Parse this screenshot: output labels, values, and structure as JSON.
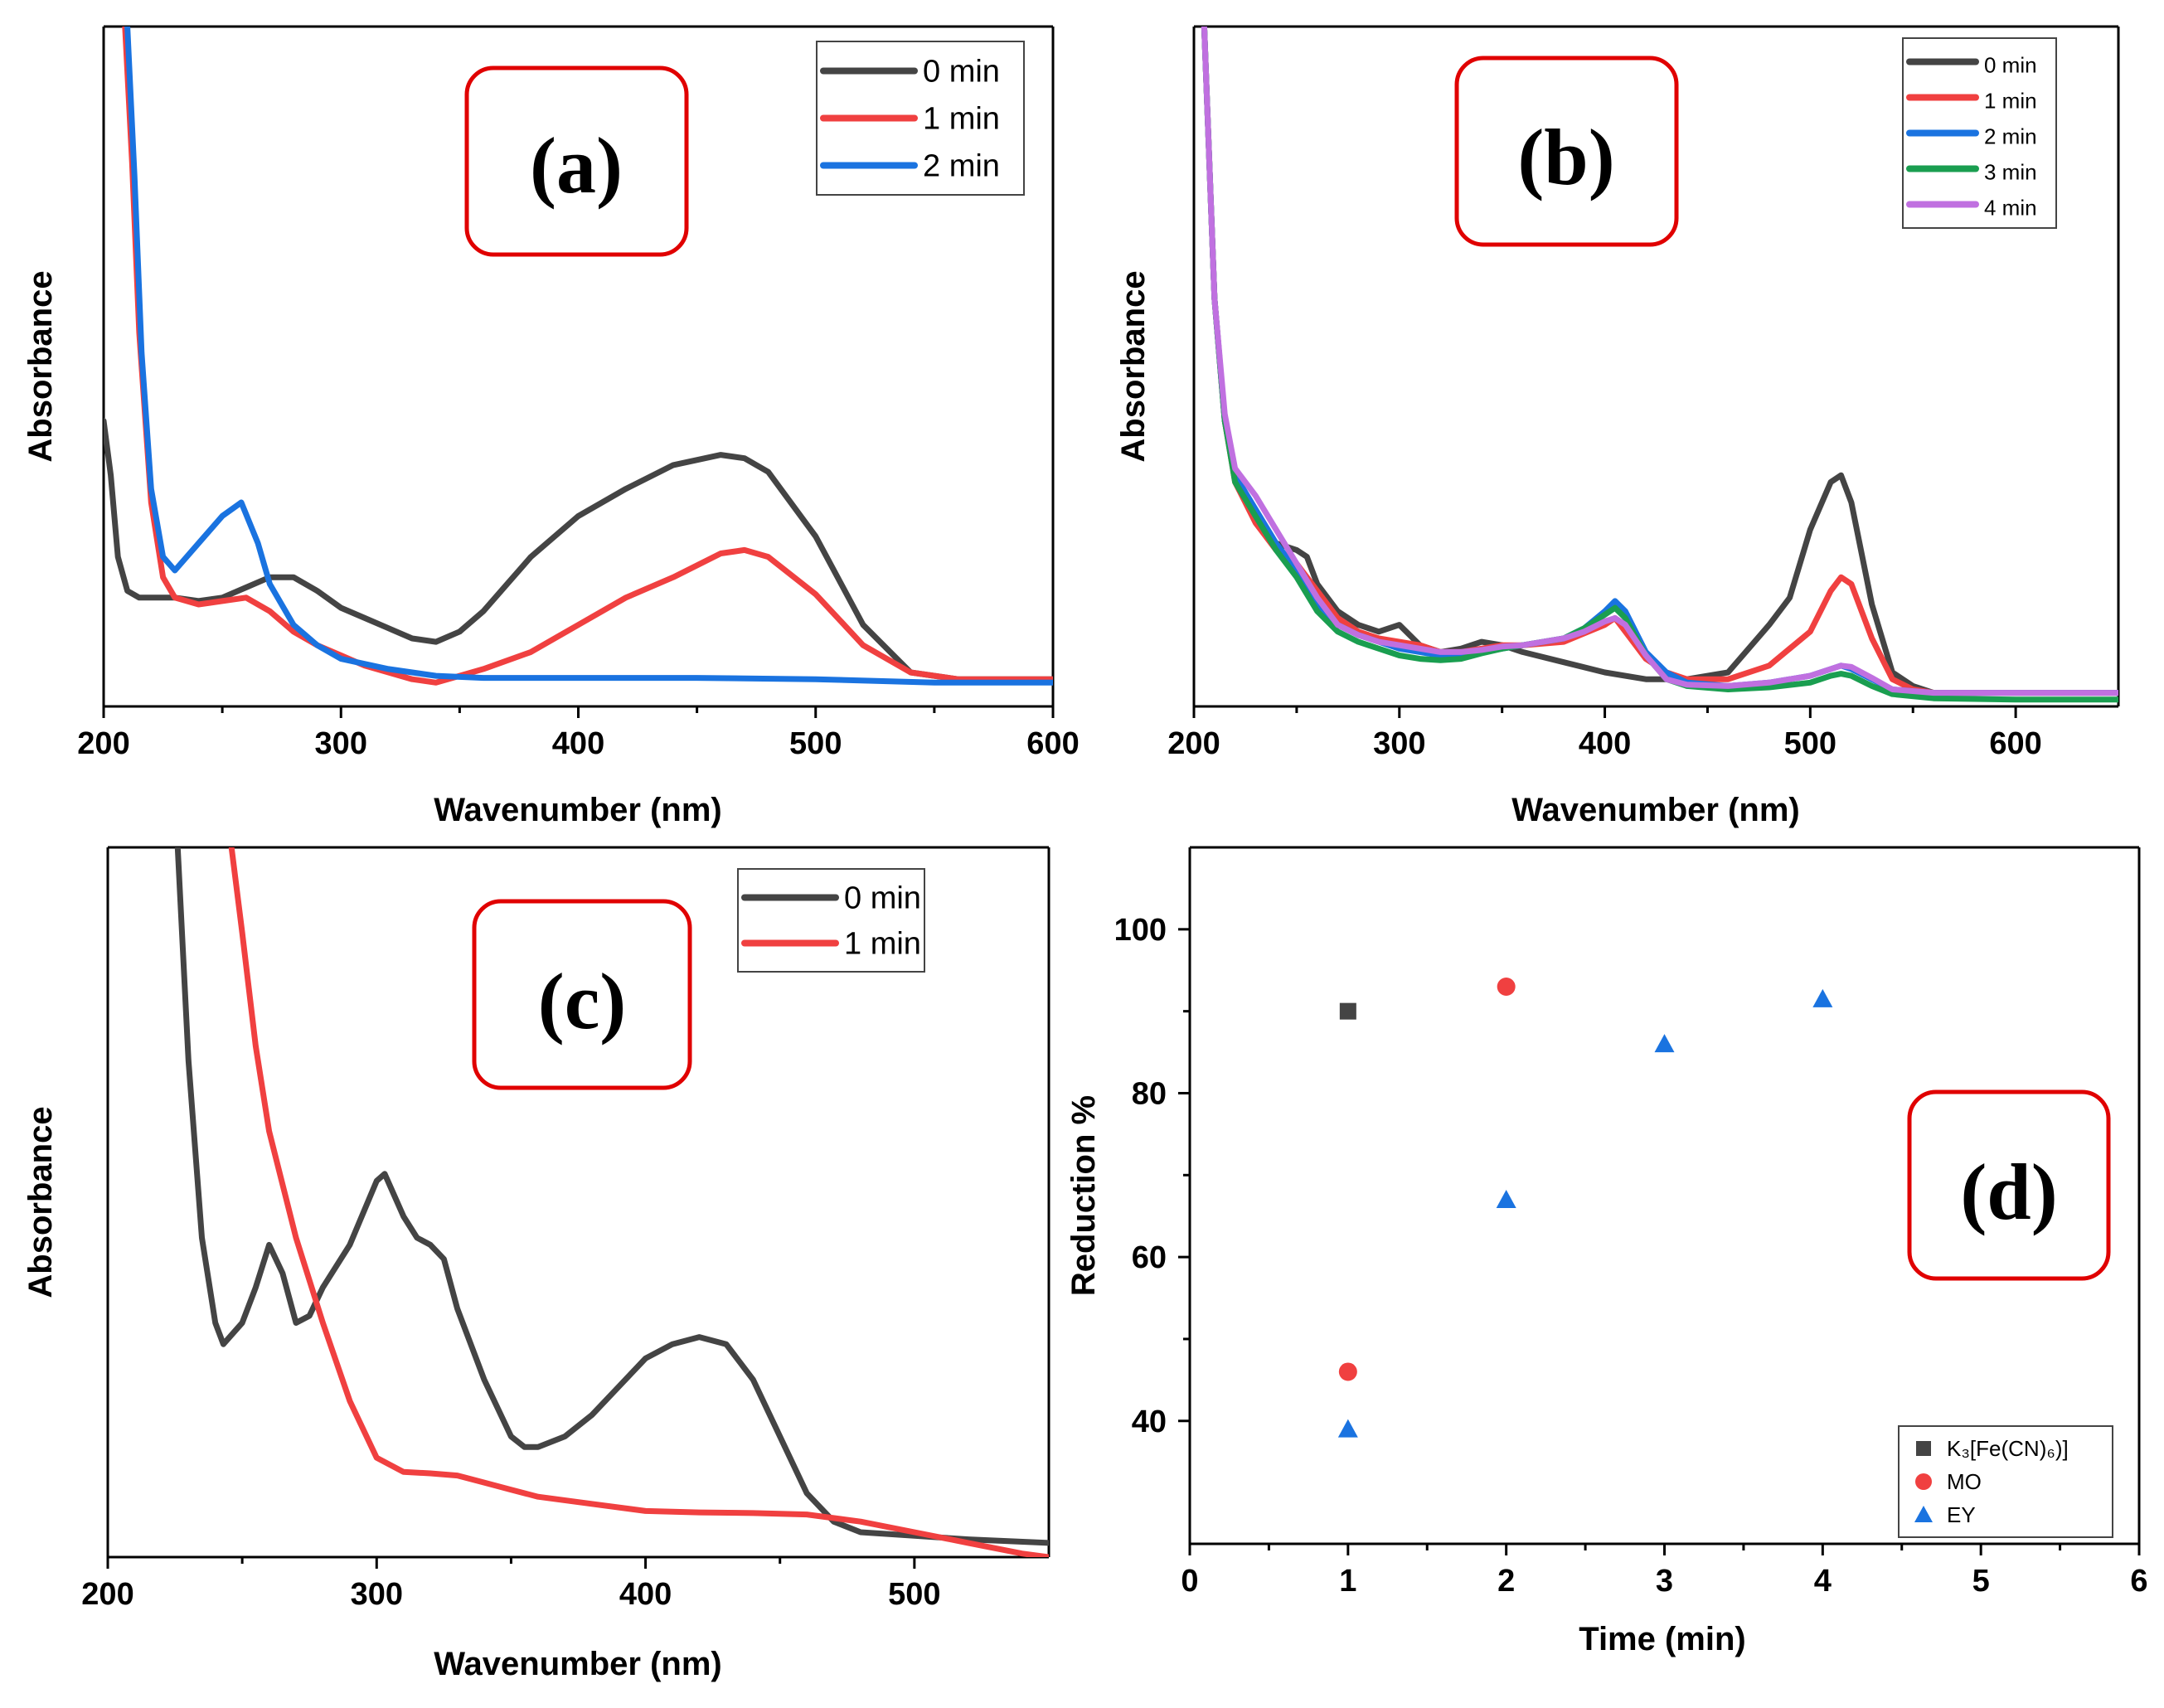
{
  "figure_title": "",
  "chart_data": [
    {
      "type": "line",
      "panel_label": "(a)",
      "xlabel": "Wavenumber (nm)",
      "ylabel": "Absorbance",
      "xlim": [
        200,
        600
      ],
      "ylim": [
        0,
        1
      ],
      "xticks": [
        200,
        300,
        400,
        500,
        600
      ],
      "legend_position": "top-right",
      "series": [
        {
          "name": "0 min",
          "color": "#444444",
          "x": [
            200,
            203,
            206,
            210,
            215,
            220,
            230,
            240,
            250,
            260,
            270,
            280,
            290,
            300,
            310,
            320,
            330,
            340,
            350,
            360,
            370,
            380,
            390,
            400,
            420,
            440,
            460,
            470,
            480,
            500,
            520,
            540,
            560,
            580,
            600
          ],
          "y": [
            0.42,
            0.34,
            0.22,
            0.17,
            0.16,
            0.16,
            0.16,
            0.155,
            0.16,
            0.175,
            0.19,
            0.19,
            0.17,
            0.145,
            0.13,
            0.115,
            0.1,
            0.095,
            0.11,
            0.14,
            0.18,
            0.22,
            0.25,
            0.28,
            0.32,
            0.355,
            0.37,
            0.365,
            0.345,
            0.25,
            0.12,
            0.05,
            0.04,
            0.04,
            0.04
          ]
        },
        {
          "name": "1 min",
          "color": "#f04040",
          "x": [
            209,
            212,
            215,
            220,
            225,
            230,
            240,
            250,
            260,
            270,
            280,
            290,
            300,
            310,
            320,
            330,
            340,
            350,
            360,
            380,
            400,
            420,
            440,
            460,
            470,
            480,
            500,
            520,
            540,
            560,
            580,
            600
          ],
          "y": [
            1.0,
            0.8,
            0.55,
            0.3,
            0.19,
            0.16,
            0.15,
            0.155,
            0.16,
            0.14,
            0.11,
            0.09,
            0.075,
            0.06,
            0.05,
            0.04,
            0.035,
            0.045,
            0.055,
            0.08,
            0.12,
            0.16,
            0.19,
            0.225,
            0.23,
            0.22,
            0.165,
            0.09,
            0.05,
            0.04,
            0.04,
            0.04
          ]
        },
        {
          "name": "2 min",
          "color": "#1a73e0",
          "x": [
            210,
            213,
            216,
            220,
            225,
            230,
            240,
            250,
            258,
            265,
            270,
            280,
            290,
            300,
            320,
            340,
            360,
            380,
            400,
            450,
            500,
            550,
            600
          ],
          "y": [
            1.0,
            0.78,
            0.52,
            0.32,
            0.22,
            0.2,
            0.24,
            0.28,
            0.3,
            0.24,
            0.18,
            0.12,
            0.09,
            0.07,
            0.055,
            0.045,
            0.042,
            0.042,
            0.042,
            0.042,
            0.04,
            0.035,
            0.035
          ]
        }
      ]
    },
    {
      "type": "line",
      "panel_label": "(b)",
      "xlabel": "Wavenumber (nm)",
      "ylabel": "Absorbance",
      "xlim": [
        200,
        650
      ],
      "ylim": [
        0,
        1
      ],
      "xticks": [
        200,
        300,
        400,
        500,
        600
      ],
      "legend_position": "top-right",
      "series": [
        {
          "name": "0 min",
          "color": "#444444",
          "x": [
            205,
            210,
            215,
            220,
            230,
            240,
            250,
            255,
            260,
            270,
            280,
            290,
            300,
            310,
            320,
            330,
            340,
            350,
            360,
            380,
            400,
            420,
            440,
            460,
            480,
            490,
            500,
            510,
            515,
            520,
            530,
            540,
            550,
            560,
            600,
            650
          ],
          "y": [
            1.0,
            0.6,
            0.42,
            0.34,
            0.28,
            0.24,
            0.23,
            0.22,
            0.18,
            0.14,
            0.12,
            0.11,
            0.12,
            0.09,
            0.08,
            0.085,
            0.095,
            0.09,
            0.08,
            0.065,
            0.05,
            0.04,
            0.04,
            0.05,
            0.12,
            0.16,
            0.26,
            0.33,
            0.34,
            0.3,
            0.15,
            0.05,
            0.03,
            0.02,
            0.02,
            0.02
          ]
        },
        {
          "name": "1 min",
          "color": "#f04040",
          "x": [
            205,
            210,
            215,
            220,
            230,
            240,
            250,
            260,
            270,
            280,
            290,
            300,
            310,
            320,
            330,
            340,
            350,
            360,
            380,
            400,
            405,
            410,
            420,
            430,
            440,
            460,
            480,
            500,
            510,
            515,
            520,
            530,
            540,
            550,
            560,
            600,
            650
          ],
          "y": [
            1.0,
            0.6,
            0.42,
            0.33,
            0.27,
            0.23,
            0.21,
            0.17,
            0.13,
            0.11,
            0.1,
            0.095,
            0.09,
            0.08,
            0.08,
            0.085,
            0.09,
            0.09,
            0.095,
            0.12,
            0.13,
            0.11,
            0.07,
            0.05,
            0.04,
            0.04,
            0.06,
            0.11,
            0.17,
            0.19,
            0.18,
            0.1,
            0.04,
            0.025,
            0.02,
            0.02,
            0.02
          ]
        },
        {
          "name": "2 min",
          "color": "#1a73e0",
          "x": [
            205,
            210,
            215,
            220,
            230,
            240,
            250,
            260,
            270,
            280,
            290,
            300,
            310,
            320,
            330,
            340,
            350,
            360,
            380,
            390,
            400,
            405,
            410,
            420,
            430,
            440,
            460,
            480,
            500,
            510,
            515,
            520,
            530,
            540,
            560,
            600,
            650
          ],
          "y": [
            1.0,
            0.6,
            0.42,
            0.34,
            0.29,
            0.24,
            0.2,
            0.15,
            0.12,
            0.105,
            0.095,
            0.085,
            0.08,
            0.075,
            0.075,
            0.08,
            0.085,
            0.09,
            0.1,
            0.115,
            0.14,
            0.155,
            0.14,
            0.08,
            0.05,
            0.035,
            0.03,
            0.035,
            0.045,
            0.055,
            0.06,
            0.055,
            0.04,
            0.025,
            0.02,
            0.02,
            0.02
          ]
        },
        {
          "name": "3 min",
          "color": "#1a9e50",
          "x": [
            205,
            210,
            215,
            220,
            230,
            240,
            250,
            260,
            270,
            280,
            290,
            300,
            310,
            320,
            330,
            340,
            350,
            360,
            380,
            390,
            400,
            405,
            410,
            420,
            430,
            440,
            460,
            480,
            500,
            510,
            515,
            520,
            530,
            540,
            560,
            600,
            650
          ],
          "y": [
            1.0,
            0.6,
            0.42,
            0.33,
            0.28,
            0.23,
            0.19,
            0.14,
            0.11,
            0.095,
            0.085,
            0.075,
            0.07,
            0.068,
            0.07,
            0.078,
            0.085,
            0.09,
            0.1,
            0.115,
            0.135,
            0.145,
            0.13,
            0.075,
            0.04,
            0.03,
            0.025,
            0.028,
            0.035,
            0.045,
            0.048,
            0.045,
            0.03,
            0.018,
            0.012,
            0.01,
            0.01
          ]
        },
        {
          "name": "4 min",
          "color": "#c070e0",
          "x": [
            205,
            210,
            215,
            220,
            230,
            240,
            250,
            260,
            270,
            280,
            290,
            300,
            310,
            320,
            330,
            340,
            350,
            360,
            380,
            390,
            400,
            405,
            410,
            420,
            430,
            440,
            460,
            480,
            500,
            510,
            515,
            520,
            530,
            540,
            560,
            600,
            650
          ],
          "y": [
            1.0,
            0.6,
            0.43,
            0.35,
            0.31,
            0.26,
            0.21,
            0.16,
            0.12,
            0.105,
            0.095,
            0.09,
            0.085,
            0.08,
            0.08,
            0.083,
            0.088,
            0.09,
            0.1,
            0.11,
            0.125,
            0.13,
            0.12,
            0.075,
            0.04,
            0.032,
            0.03,
            0.035,
            0.045,
            0.055,
            0.06,
            0.058,
            0.042,
            0.025,
            0.02,
            0.02,
            0.02
          ]
        }
      ]
    },
    {
      "type": "line",
      "panel_label": "(c)",
      "xlabel": "Wavenumber (nm)",
      "ylabel": "Absorbance",
      "xlim": [
        200,
        550
      ],
      "ylim": [
        0,
        1
      ],
      "xticks": [
        200,
        300,
        400,
        500
      ],
      "legend_position": "top-right",
      "series": [
        {
          "name": "0 min",
          "color": "#444444",
          "x": [
            226,
            230,
            235,
            240,
            243,
            250,
            255,
            260,
            265,
            270,
            275,
            280,
            290,
            300,
            303,
            310,
            315,
            320,
            325,
            330,
            340,
            350,
            355,
            360,
            370,
            380,
            390,
            400,
            410,
            420,
            430,
            440,
            450,
            460,
            470,
            480,
            500,
            520,
            550
          ],
          "y": [
            1.0,
            0.7,
            0.45,
            0.33,
            0.3,
            0.33,
            0.38,
            0.44,
            0.4,
            0.33,
            0.34,
            0.38,
            0.44,
            0.53,
            0.54,
            0.48,
            0.45,
            0.44,
            0.42,
            0.35,
            0.25,
            0.17,
            0.155,
            0.155,
            0.17,
            0.2,
            0.24,
            0.28,
            0.3,
            0.31,
            0.3,
            0.25,
            0.17,
            0.09,
            0.05,
            0.035,
            0.03,
            0.025,
            0.02
          ]
        },
        {
          "name": "1 min",
          "color": "#f04040",
          "x": [
            246,
            250,
            255,
            260,
            270,
            280,
            290,
            300,
            310,
            320,
            330,
            340,
            350,
            360,
            380,
            400,
            420,
            440,
            460,
            480,
            500,
            520,
            540,
            550
          ],
          "y": [
            1.0,
            0.88,
            0.72,
            0.6,
            0.45,
            0.33,
            0.22,
            0.14,
            0.12,
            0.118,
            0.115,
            0.105,
            0.095,
            0.085,
            0.075,
            0.065,
            0.063,
            0.062,
            0.06,
            0.05,
            0.035,
            0.02,
            0.005,
            0.0
          ]
        }
      ]
    },
    {
      "type": "scatter",
      "panel_label": "(d)",
      "xlabel": "Time (min)",
      "ylabel": "Reduction %",
      "xlim": [
        0,
        6
      ],
      "ylim": [
        25,
        110
      ],
      "xticks": [
        0,
        1,
        2,
        3,
        4,
        5,
        6
      ],
      "yticks": [
        40,
        60,
        80,
        100
      ],
      "legend_position": "bottom-right",
      "series": [
        {
          "name": "K₃[Fe(CN)₆)]",
          "marker": "square",
          "color": "#444444",
          "x": [
            1
          ],
          "y": [
            90
          ]
        },
        {
          "name": "MO",
          "marker": "circle",
          "color": "#f04040",
          "x": [
            1,
            2
          ],
          "y": [
            46,
            93
          ]
        },
        {
          "name": "EY",
          "marker": "triangle",
          "color": "#1a73e0",
          "x": [
            1,
            2,
            3,
            4
          ],
          "y": [
            39,
            67,
            86,
            91.5
          ]
        }
      ]
    }
  ]
}
